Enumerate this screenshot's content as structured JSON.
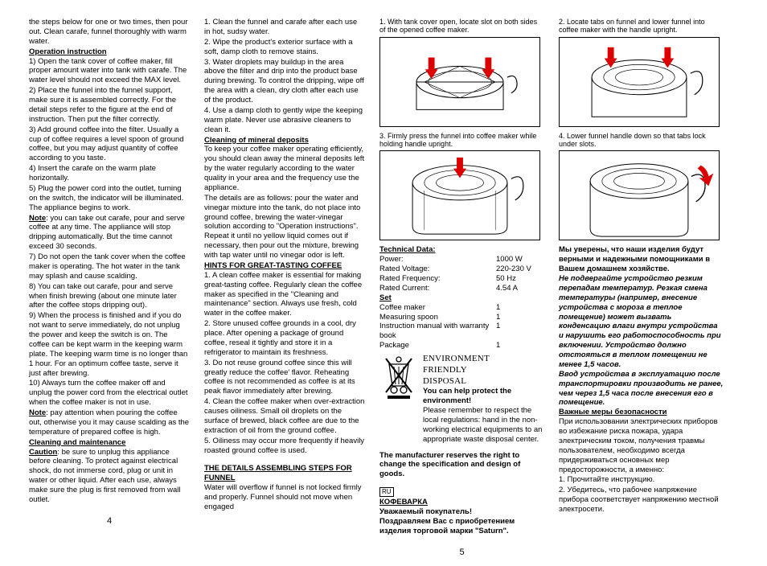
{
  "col1": {
    "p1": "the steps below for one or two times, then pour out. Clean carafe, funnel thoroughly with warm water.",
    "h1": "Operation instruction",
    "p2": "1) Open the tank cover of coffee maker, fill proper amount water into tank with carafe. The water level should not exceed the MAX level.",
    "p3": "2) Place the funnel into the funnel support, make sure it is assembled correctly. For the detail steps refer to the figure at the end of instruction. Then put the filter correctly.",
    "p4": "3) Add ground coffee into the filter. Usually a cup of coffee requires a level spoon of ground coffee, but you may adjust quantity of coffee according to you taste.",
    "p5": "4) Insert the carafe on the warm plate horizontally.",
    "p6": "5) Plug the power cord into the outlet, turning on the switch, the indicator will be illuminated. The appliance begins to work.",
    "noteLabel": "Note",
    "p7": ": you can take out carafe, pour and serve coffee at any time. The appliance will stop dripping automatically. But the time cannot exceed 30 seconds.",
    "p8": "7) Do not open the tank cover when the coffee maker is operating. The hot water in the tank may splash and cause scalding.",
    "p9": "8) You can take out carafe, pour and serve when finish brewing (about one minute later after the coffee stops dripping out).",
    "p10": "9) When the process is finished and if you do not want to serve immediately, do not unplug the power and keep the switch is on. The coffee can be kept warm in the keeping warm plate. The keeping warm time is no longer than 1 hour. For an optimum coffee taste, serve it just after brewing.",
    "p11": "10) Always turn the coffee maker off and unplug the power cord from the electrical outlet when the coffee maker is not in use.",
    "p12": ": pay attention when pouring the coffee out, otherwise you it may cause scalding as the temperature of prepared coffee is high.",
    "h2": "Cleaning and maintenance",
    "cautionLabel": "Caution",
    "p13": ": be sure to unplug this appliance before cleaning. To protect against electrical shock, do not immerse cord, plug or unit in water or other liquid. After each use, always make sure the plug is first removed from wall outlet.",
    "pagenum": "4"
  },
  "col2": {
    "p1": "1. Clean the funnel and carafe after each use in hot, sudsy water.",
    "p2": "2. Wipe the product's exterior surface with a soft, damp cloth to remove stains.",
    "p3": "3. Water droplets may buildup in the area above the filter and drip into the product base during brewing. To control the dripping, wipe off the area with a clean, dry cloth after each use of the product.",
    "p4": "4. Use a damp cloth to gently wipe the keeping warm plate. Never use abrasive cleaners to clean it.",
    "h1": "Cleaning of mineral deposits",
    "p5": "To keep your coffee maker operating efficiently, you should clean away the mineral deposits left by the water regularly according to the water quality in your area and the frequency use the appliance.",
    "p6": "The details are as follows: pour the water and vinegar mixture into the tank, do not place into ground coffee, brewing the water-vinegar solution according to \"Operation instructions\". Repeat it until no yellow liquid comes out if necessary, then pour out the mixture, brewing with tap water until no vinegar odor is left.",
    "h2": "HINTS FOR GREAT-TASTING COFFEE",
    "p7": "1. A clean coffee maker is essential for making great-tasting coffee. Regularly clean the coffee maker as specified in the \"Cleaning and maintenance\" section. Always use fresh, cold water in the coffee maker.",
    "p8": "2. Store unused coffee grounds in a cool, dry place. After opening a package of ground coffee, reseal it tightly and store it in a refrigerator to maintain its freshness.",
    "p9": "3. Do not reuse ground coffee since this will greatly reduce the coffee' flavor. Reheating coffee is not recommended as coffee is at its peak flavor immediately after brewing.",
    "p10": "4. Clean the coffee maker when over-extraction causes oiliness. Small oil droplets on the surface of brewed, black coffee are due to the extraction of oil from the ground coffee.",
    "p11": "5. Oiliness may occur more frequently if heavily roasted ground coffee is used.",
    "h3": "THE DETAILS ASSEMBLING STEPS FOR FUNNEL",
    "p12": "Water will overflow if funnel is not locked firmly and properly. Funnel should not move when engaged"
  },
  "col3": {
    "cap1": "1. With tank cover open, locate slot on both sides of the opened coffee maker.",
    "cap3": "3. Firmly press the funnel into coffee maker while holding handle upright.",
    "techHead": "Technical Data:",
    "specs": [
      {
        "k": "Power:",
        "v": "1000 W"
      },
      {
        "k": "Rated Voltage:",
        "v": "220-230 V"
      },
      {
        "k": "Rated Frequency:",
        "v": "50 Hz"
      },
      {
        "k": "Rated Current:",
        "v": "4.54 A"
      }
    ],
    "setHead": "Set",
    "setItems": [
      {
        "k": "Coffee maker",
        "v": "1"
      },
      {
        "k": "Measuring spoon",
        "v": "1"
      },
      {
        "k": "Instruction manual with warranty book",
        "v": "1"
      },
      {
        "k": "Package",
        "v": "1"
      }
    ],
    "envTitle1": "ENVIRONMENT",
    "envTitle2": "FRIENDLY",
    "envTitle3": "DISPOSAL",
    "envBold": "You can help protect the environment!",
    "envText": "Please remember to respect the local regulations: hand in the non-working electrical equipments to an appropriate waste disposal center.",
    "mfr": "The manufacturer reserves the right to change the specification and design of goods.",
    "ruFlag": "RU",
    "ruHead": "КОФЕВАРКА",
    "ruGreet": "Уважаемый покупатель!",
    "ruCong": "Поздравляем Вас с приобретением изделия торговой марки \"Saturn\".",
    "pagenum": "5"
  },
  "col4": {
    "cap2": "2. Locate tabs on funnel and lower funnel into coffee maker with the handle upright.",
    "cap4": "4. Lower funnel handle down so that tabs lock under slots.",
    "ru1": "Мы уверены, что наши изделия будут верными и надежными помощниками в Вашем домашнем хозяйстве.",
    "ru2": "Не подвергайте устройство резким перепадам температур. Резкая смена температуры (например, внесение устройства с мороза в теплое помещение) может вызвать конденсацию влаги внутри устройства и нарушить его работоспособность при включении. Устройство должно отстояться в теплом помещении не менее 1,5 часов.",
    "ru3": "Ввод устройства в эксплуатацию после транспортировки производить не ранее, чем через 1,5 часа после внесения его в помещение.",
    "ru4head": "Важные меры безопасности",
    "ru4": "При использовании электрических приборов во избежание риска пожара, удара электрическим током, получения травмы пользователем, необходимо всегда придерживаться основных мер предосторожности, а именно:",
    "ru5": "1. Прочитайте инструкцию.",
    "ru6": "2. Убедитесь, что рабочее напряжение прибора соответствует напряжению местной электросети."
  },
  "colors": {
    "arrow": "#cc0000",
    "line": "#000000"
  }
}
